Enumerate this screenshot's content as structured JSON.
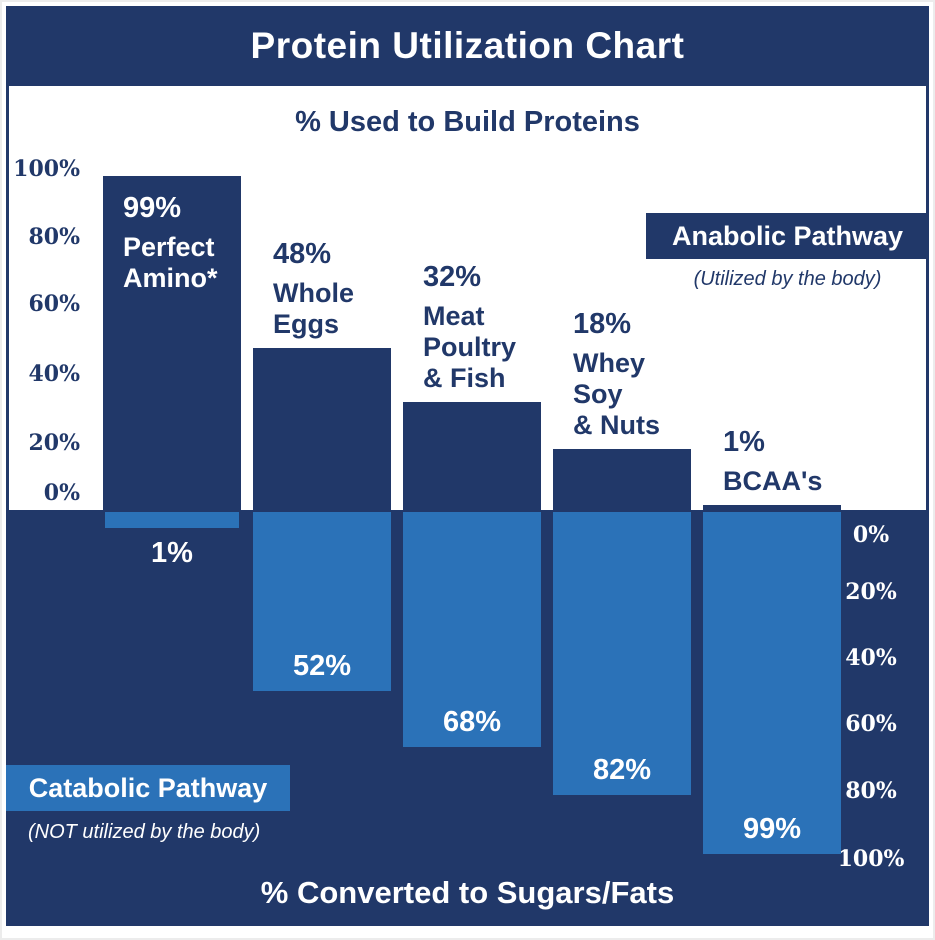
{
  "title": "Protein Utilization Chart",
  "colors": {
    "navy": "#213869",
    "light_blue": "#2B72B8",
    "white": "#ffffff",
    "frame_border": "#ececec"
  },
  "top": {
    "subtitle": "% Used to Build Proteins",
    "axis_ticks": [
      "100%",
      "80%",
      "60%",
      "40%",
      "20%",
      "0%"
    ],
    "legend": {
      "label": "Anabolic Pathway",
      "note": "(Utilized by the body)"
    }
  },
  "bottom": {
    "axis_ticks": [
      "0%",
      "20%",
      "40%",
      "60%",
      "80%",
      "100%"
    ],
    "legend": {
      "label": "Catabolic Pathway",
      "note": "(NOT utilized by the body)"
    },
    "title": "% Converted to Sugars/Fats"
  },
  "chart_data": {
    "type": "bar",
    "title": "Protein Utilization Chart",
    "orientation": "vertical-mirrored",
    "top_axis": {
      "label": "% Used to Build Proteins",
      "ticks": [
        "100%",
        "80%",
        "60%",
        "40%",
        "20%",
        "0%"
      ],
      "range": [
        0,
        100
      ],
      "direction": "up",
      "side": "left"
    },
    "bottom_axis": {
      "label": "% Converted to Sugars/Fats",
      "ticks": [
        "0%",
        "20%",
        "40%",
        "60%",
        "80%",
        "100%"
      ],
      "range": [
        0,
        100
      ],
      "direction": "down",
      "side": "right"
    },
    "categories": [
      "Perfect Amino*",
      "Whole Eggs",
      "Meat Poultry & Fish",
      "Whey Soy & Nuts",
      "BCAA's"
    ],
    "series": [
      {
        "name": "Anabolic Pathway (Utilized by the body)",
        "color": "#213869",
        "values": [
          99,
          48,
          32,
          18,
          1
        ]
      },
      {
        "name": "Catabolic Pathway (NOT utilized by the body)",
        "color": "#2B72B8",
        "values": [
          1,
          52,
          68,
          82,
          99
        ]
      }
    ],
    "bars": [
      {
        "category_lines": [
          "Perfect",
          "Amino*"
        ],
        "top_label": "99%",
        "top_value": 99,
        "bottom_label": "1%",
        "bottom_value": 1,
        "top_label_inside": true
      },
      {
        "category_lines": [
          "Whole",
          "Eggs"
        ],
        "top_label": "48%",
        "top_value": 48,
        "bottom_label": "52%",
        "bottom_value": 52,
        "top_label_inside": false
      },
      {
        "category_lines": [
          "Meat",
          "Poultry",
          "& Fish"
        ],
        "top_label": "32%",
        "top_value": 32,
        "bottom_label": "68%",
        "bottom_value": 68,
        "top_label_inside": false
      },
      {
        "category_lines": [
          "Whey",
          "Soy",
          "& Nuts"
        ],
        "top_label": "18%",
        "top_value": 18,
        "bottom_label": "82%",
        "bottom_value": 82,
        "top_label_inside": false
      },
      {
        "category_lines": [
          "BCAA's"
        ],
        "top_label": "1%",
        "top_value": 1,
        "bottom_label": "99%",
        "bottom_value": 99,
        "top_label_inside": false
      }
    ]
  }
}
